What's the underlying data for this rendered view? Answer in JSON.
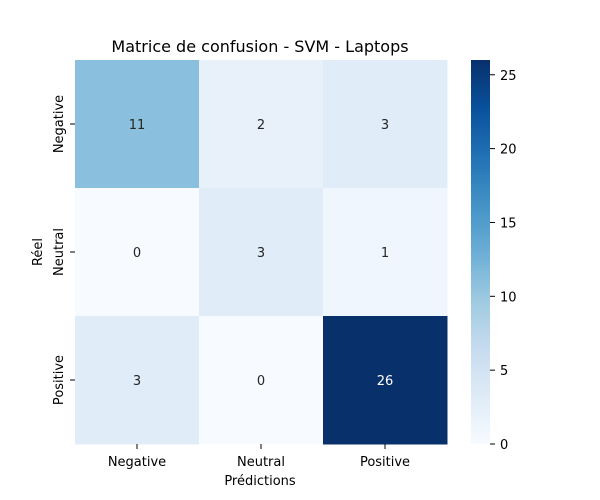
{
  "chart_data": {
    "type": "heatmap",
    "title": "Matrice de confusion - SVM - Laptops",
    "xlabel": "Prédictions",
    "ylabel": "Réel",
    "x_categories": [
      "Negative",
      "Neutral",
      "Positive"
    ],
    "y_categories": [
      "Negative",
      "Neutral",
      "Positive"
    ],
    "values": [
      [
        11,
        2,
        3
      ],
      [
        0,
        3,
        1
      ],
      [
        3,
        0,
        26
      ]
    ],
    "colorbar": {
      "min": 0,
      "max": 26,
      "ticks": [
        0,
        5,
        10,
        15,
        20,
        25
      ],
      "colormap": "Blues",
      "low_color": "#f7fbff",
      "high_color": "#08306b"
    },
    "grid": false,
    "legend": "none"
  }
}
